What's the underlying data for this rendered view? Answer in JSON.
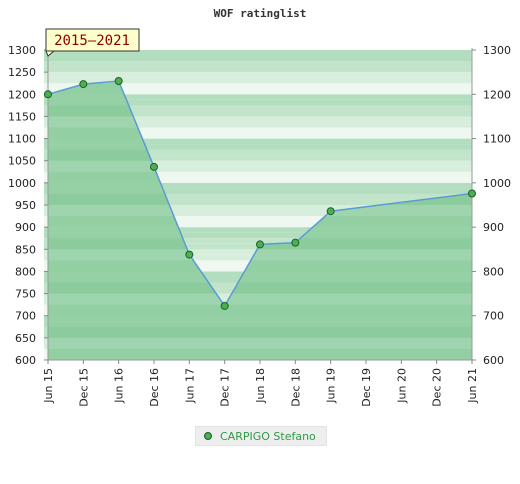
{
  "chart_data": {
    "type": "area",
    "title": "WOF ratinglist",
    "period_label": "2015–2021",
    "x": [
      "Jun 15",
      "Dec 15",
      "Jun 16",
      "Dec 16",
      "Jun 17",
      "Dec 17",
      "Jun 18",
      "Dec 18",
      "Jun 19",
      "Dec 19",
      "Jun 20",
      "Dec 20",
      "Jun 21"
    ],
    "series": [
      {
        "name": "CARPIGO Stefano",
        "points": [
          {
            "x": "Jun 15",
            "y": 1200
          },
          {
            "x": "Dec 15",
            "y": 1223
          },
          {
            "x": "Jun 16",
            "y": 1230
          },
          {
            "x": "Dec 16",
            "y": 1036
          },
          {
            "x": "Jun 17",
            "y": 838
          },
          {
            "x": "Dec 17",
            "y": 722
          },
          {
            "x": "Jun 18",
            "y": 861
          },
          {
            "x": "Dec 18",
            "y": 865
          },
          {
            "x": "Jun 19",
            "y": 936
          },
          {
            "x": "Jun 21",
            "y": 976
          }
        ]
      }
    ],
    "ylim": [
      600,
      1300
    ],
    "yticks": [
      600,
      650,
      700,
      750,
      800,
      850,
      900,
      950,
      1000,
      1050,
      1100,
      1150,
      1200,
      1250,
      1300
    ],
    "yticks_right": [
      600,
      700,
      800,
      900,
      1000,
      1100,
      1200,
      1300
    ],
    "legend_position": "bottom-center",
    "colors": {
      "fill": "#8ccc9e",
      "line": "#5b9bd5",
      "marker": "#4caf50",
      "legend_text": "#2e9a46"
    }
  }
}
